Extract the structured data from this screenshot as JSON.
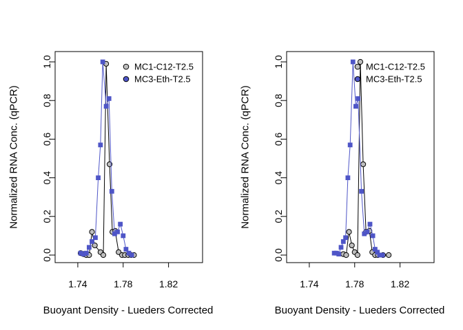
{
  "chart_data": [
    {
      "type": "line",
      "xlabel": "Buoyant Density - Lueders Corrected",
      "ylabel": "Normalized RNA Conc. (qPCR)",
      "xlim": [
        1.72,
        1.85
      ],
      "ylim": [
        0,
        1
      ],
      "xticks": [
        1.74,
        1.78,
        1.82
      ],
      "xtick_labels": [
        "1.74",
        "1.78",
        "1.82"
      ],
      "yticks": [
        0,
        0.2,
        0.4,
        0.6,
        0.8,
        1
      ],
      "ytick_labels": [
        "0.0",
        "0.2",
        "0.4",
        "0.6",
        "0.8",
        "1.0"
      ],
      "legend_position": "top-right",
      "series": [
        {
          "name": "MC1-C12-T2.5",
          "color": "#000000",
          "marker_fill": "#bebebe",
          "marker": "circle",
          "points": [
            [
              1.7425,
              0.01
            ],
            [
              1.745,
              0.005
            ],
            [
              1.7475,
              0.0
            ],
            [
              1.75,
              0.0
            ],
            [
              1.7525,
              0.12
            ],
            [
              1.755,
              0.05
            ],
            [
              1.76,
              0.015
            ],
            [
              1.7625,
              0.0
            ],
            [
              1.765,
              0.99
            ],
            [
              1.768,
              0.47
            ],
            [
              1.7705,
              0.12
            ],
            [
              1.773,
              0.125
            ],
            [
              1.776,
              0.015
            ],
            [
              1.779,
              0.0
            ],
            [
              1.7815,
              0.0
            ],
            [
              1.7845,
              0.0
            ],
            [
              1.787,
              0.0
            ],
            [
              1.7895,
              0.0
            ]
          ]
        },
        {
          "name": "MC3-Eth-T2.5",
          "color": "#4e55c7",
          "marker_fill": "#4e55c7",
          "marker": "square",
          "points": [
            [
              1.7425,
              0.01
            ],
            [
              1.745,
              0.005
            ],
            [
              1.7475,
              0.01
            ],
            [
              1.75,
              0.04
            ],
            [
              1.7525,
              0.07
            ],
            [
              1.7555,
              0.09
            ],
            [
              1.758,
              0.4
            ],
            [
              1.76,
              0.57
            ],
            [
              1.762,
              1.0
            ],
            [
              1.765,
              0.77
            ],
            [
              1.7675,
              0.81
            ],
            [
              1.77,
              0.33
            ],
            [
              1.7725,
              0.11
            ],
            [
              1.775,
              0.12
            ],
            [
              1.7775,
              0.16
            ],
            [
              1.78,
              0.1
            ],
            [
              1.7825,
              0.03
            ],
            [
              1.785,
              0.01
            ],
            [
              1.7875,
              0.0
            ]
          ]
        }
      ]
    },
    {
      "type": "line",
      "xlabel": "Buoyant Density - Lueders Corrected",
      "ylabel": "Normalized RNA Conc. (qPCR)",
      "xlim": [
        1.72,
        1.85
      ],
      "ylim": [
        0,
        1
      ],
      "xticks": [
        1.74,
        1.78,
        1.82
      ],
      "xtick_labels": [
        "1.74",
        "1.78",
        "1.82"
      ],
      "yticks": [
        0,
        0.2,
        0.4,
        0.6,
        0.8,
        1
      ],
      "ytick_labels": [
        "0.0",
        "0.2",
        "0.4",
        "0.6",
        "0.8",
        "1.0"
      ],
      "legend_position": "top-right",
      "series": [
        {
          "name": "MC1-C12-T2.5",
          "color": "#000000",
          "marker_fill": "#bebebe",
          "marker": "circle",
          "points": [
            [
              1.77,
              0.005
            ],
            [
              1.7725,
              0.0
            ],
            [
              1.775,
              0.12
            ],
            [
              1.7775,
              0.05
            ],
            [
              1.78,
              0.015
            ],
            [
              1.7825,
              0.0
            ],
            [
              1.785,
              1.0
            ],
            [
              1.7875,
              0.47
            ],
            [
              1.79,
              0.12
            ],
            [
              1.793,
              0.125
            ],
            [
              1.7955,
              0.015
            ],
            [
              1.798,
              0.0
            ],
            [
              1.8005,
              0.0
            ],
            [
              1.805,
              0.0
            ],
            [
              1.81,
              0.0
            ]
          ]
        },
        {
          "name": "MC3-Eth-T2.5",
          "color": "#4e55c7",
          "marker_fill": "#4e55c7",
          "marker": "square",
          "points": [
            [
              1.762,
              0.01
            ],
            [
              1.764,
              0.01
            ],
            [
              1.766,
              0.005
            ],
            [
              1.768,
              0.04
            ],
            [
              1.77,
              0.07
            ],
            [
              1.772,
              0.09
            ],
            [
              1.774,
              0.4
            ],
            [
              1.776,
              0.57
            ],
            [
              1.7785,
              1.0
            ],
            [
              1.781,
              0.77
            ],
            [
              1.783,
              0.81
            ],
            [
              1.786,
              0.33
            ],
            [
              1.7885,
              0.11
            ],
            [
              1.791,
              0.12
            ],
            [
              1.7935,
              0.16
            ],
            [
              1.796,
              0.1
            ],
            [
              1.798,
              0.03
            ],
            [
              1.8,
              0.015
            ],
            [
              1.802,
              0.0
            ],
            [
              1.8045,
              0.0
            ]
          ]
        }
      ]
    }
  ]
}
